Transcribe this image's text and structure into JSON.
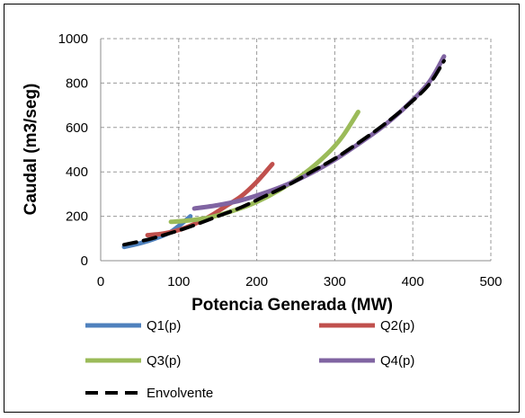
{
  "chart_data": {
    "type": "line",
    "title": "",
    "xlabel": "Potencia Generada (MW)",
    "ylabel": "Caudal (m3/seg)",
    "xlim": [
      0,
      500
    ],
    "ylim": [
      0,
      1000
    ],
    "xticks": [
      0,
      100,
      200,
      300,
      400,
      500
    ],
    "yticks": [
      0,
      200,
      400,
      600,
      800,
      1000
    ],
    "grid": true,
    "grid_style": "dashed",
    "legend_position": "bottom",
    "series": [
      {
        "name": "Q1(p)",
        "color": "#4f81bd",
        "dashed": false,
        "points": [
          [
            30,
            62
          ],
          [
            50,
            78
          ],
          [
            70,
            100
          ],
          [
            90,
            130
          ],
          [
            110,
            185
          ],
          [
            115,
            200
          ]
        ]
      },
      {
        "name": "Q2(p)",
        "color": "#c0504d",
        "dashed": false,
        "points": [
          [
            60,
            115
          ],
          [
            80,
            122
          ],
          [
            100,
            138
          ],
          [
            120,
            165
          ],
          [
            140,
            200
          ],
          [
            160,
            245
          ],
          [
            180,
            290
          ],
          [
            200,
            355
          ],
          [
            220,
            435
          ]
        ]
      },
      {
        "name": "Q3(p)",
        "color": "#9bbb59",
        "dashed": false,
        "points": [
          [
            90,
            175
          ],
          [
            110,
            180
          ],
          [
            140,
            195
          ],
          [
            170,
            225
          ],
          [
            200,
            265
          ],
          [
            230,
            320
          ],
          [
            260,
            390
          ],
          [
            290,
            480
          ],
          [
            310,
            560
          ],
          [
            330,
            670
          ]
        ]
      },
      {
        "name": "Q4(p)",
        "color": "#8064a2",
        "dashed": false,
        "points": [
          [
            120,
            235
          ],
          [
            150,
            250
          ],
          [
            180,
            272
          ],
          [
            210,
            305
          ],
          [
            240,
            345
          ],
          [
            270,
            395
          ],
          [
            300,
            455
          ],
          [
            330,
            525
          ],
          [
            360,
            600
          ],
          [
            390,
            690
          ],
          [
            420,
            800
          ],
          [
            440,
            920
          ]
        ]
      },
      {
        "name": "Envolvente",
        "color": "#000000",
        "dashed": true,
        "points": [
          [
            30,
            72
          ],
          [
            60,
            95
          ],
          [
            90,
            125
          ],
          [
            120,
            160
          ],
          [
            150,
            200
          ],
          [
            180,
            240
          ],
          [
            210,
            290
          ],
          [
            240,
            340
          ],
          [
            270,
            400
          ],
          [
            300,
            460
          ],
          [
            330,
            530
          ],
          [
            360,
            605
          ],
          [
            390,
            690
          ],
          [
            420,
            790
          ],
          [
            440,
            900
          ]
        ]
      }
    ]
  }
}
